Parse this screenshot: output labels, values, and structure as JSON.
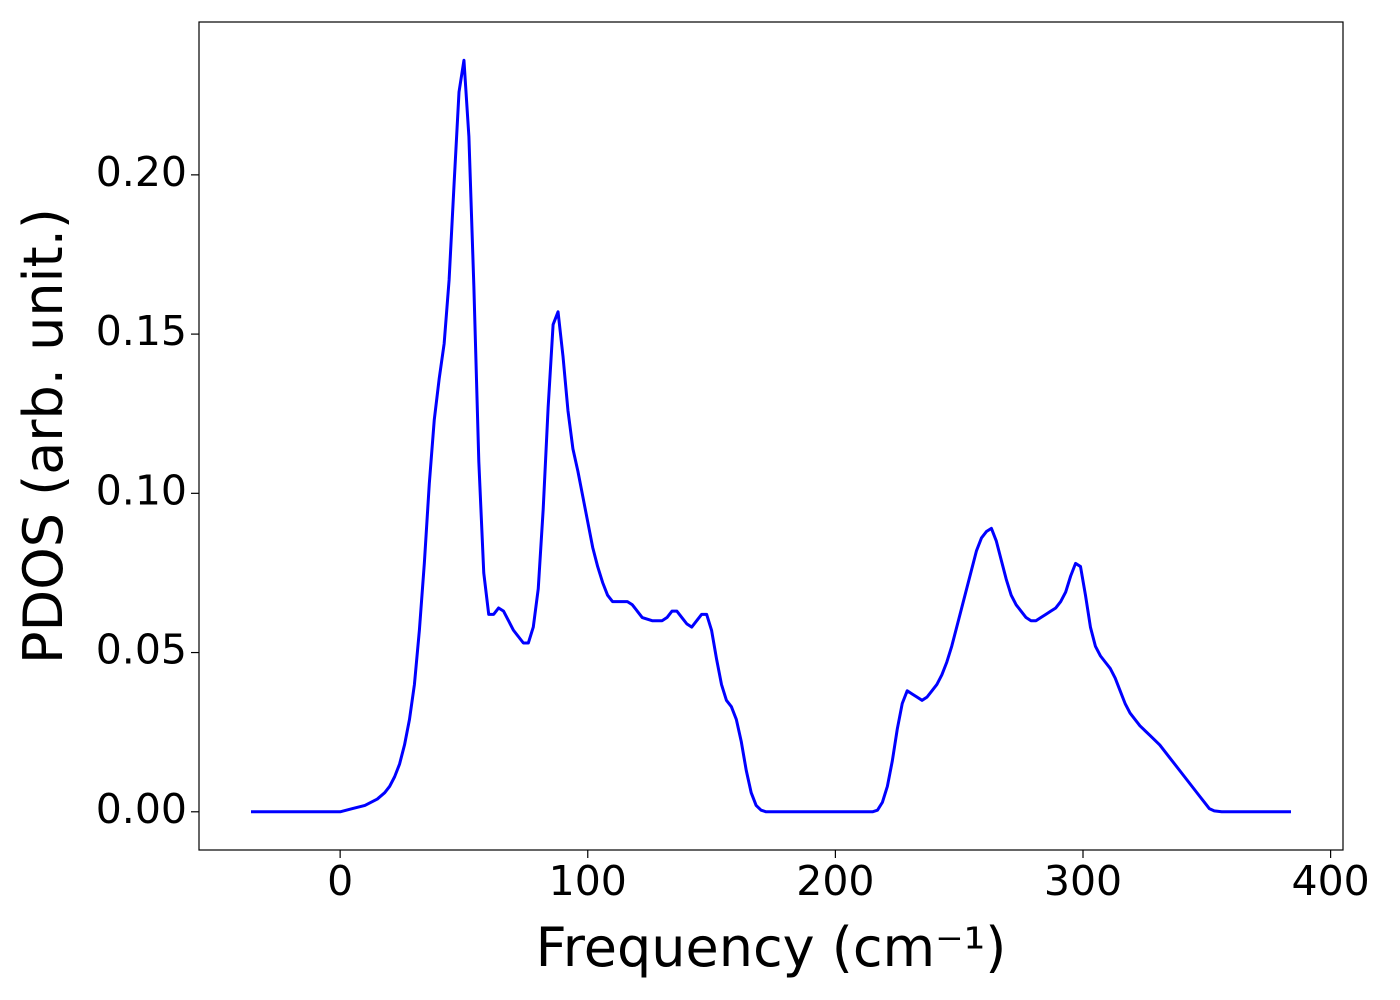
{
  "chart_data": {
    "type": "line",
    "xlabel": "Frequency (cm⁻¹)",
    "ylabel": "PDOS (arb. unit.)",
    "xlim": [
      -57,
      405
    ],
    "ylim": [
      -0.012,
      0.248
    ],
    "xticks": [
      0,
      100,
      200,
      300,
      400
    ],
    "yticks": [
      {
        "value": 0,
        "label": "0.00"
      },
      {
        "value": 0.05,
        "label": "0.05"
      },
      {
        "value": 0.1,
        "label": "0.10"
      },
      {
        "value": 0.15,
        "label": "0.15"
      },
      {
        "value": 0.2,
        "label": "0.20"
      }
    ],
    "x": [
      -36,
      0,
      5,
      10,
      15,
      18,
      20,
      22,
      24,
      26,
      28,
      30,
      32,
      34,
      36,
      38,
      40,
      42,
      44,
      46,
      48,
      50,
      52,
      54,
      56,
      58,
      60,
      62,
      64,
      66,
      68,
      70,
      72,
      74,
      76,
      78,
      80,
      82,
      84,
      86,
      88,
      90,
      92,
      94,
      96,
      98,
      100,
      102,
      104,
      106,
      108,
      110,
      114,
      116,
      118,
      120,
      122,
      126,
      130,
      132,
      134,
      136,
      138,
      140,
      142,
      144,
      146,
      148,
      150,
      152,
      154,
      156,
      158,
      160,
      162,
      164,
      166,
      168,
      170,
      172,
      180,
      200,
      215,
      217,
      219,
      221,
      223,
      225,
      227,
      229,
      231,
      233,
      235,
      237,
      239,
      241,
      243,
      245,
      247,
      249,
      251,
      253,
      255,
      257,
      259,
      261,
      263,
      265,
      267,
      269,
      271,
      273,
      275,
      277,
      279,
      281,
      283,
      285,
      287,
      289,
      291,
      293,
      295,
      297,
      299,
      301,
      303,
      305,
      307,
      309,
      311,
      313,
      315,
      317,
      319,
      321,
      323,
      327,
      331,
      335,
      339,
      343,
      347,
      349,
      351,
      353,
      356,
      384
    ],
    "series": [
      {
        "color": "#0000ff",
        "values": [
          0,
          0,
          0.001,
          0.002,
          0.004,
          0.006,
          0.008,
          0.011,
          0.015,
          0.021,
          0.029,
          0.04,
          0.057,
          0.078,
          0.103,
          0.123,
          0.136,
          0.147,
          0.167,
          0.197,
          0.226,
          0.236,
          0.212,
          0.165,
          0.11,
          0.075,
          0.062,
          0.062,
          0.064,
          0.063,
          0.06,
          0.057,
          0.055,
          0.053,
          0.053,
          0.058,
          0.07,
          0.095,
          0.127,
          0.153,
          0.157,
          0.143,
          0.126,
          0.114,
          0.107,
          0.099,
          0.091,
          0.083,
          0.077,
          0.072,
          0.068,
          0.066,
          0.066,
          0.066,
          0.065,
          0.063,
          0.061,
          0.06,
          0.06,
          0.061,
          0.063,
          0.063,
          0.061,
          0.059,
          0.058,
          0.06,
          0.062,
          0.062,
          0.057,
          0.048,
          0.04,
          0.035,
          0.033,
          0.029,
          0.022,
          0.013,
          0.006,
          0.002,
          0.0005,
          0,
          0,
          0,
          0,
          0.0005,
          0.003,
          0.008,
          0.016,
          0.026,
          0.034,
          0.038,
          0.037,
          0.036,
          0.035,
          0.036,
          0.038,
          0.04,
          0.043,
          0.047,
          0.052,
          0.058,
          0.064,
          0.07,
          0.076,
          0.082,
          0.086,
          0.088,
          0.089,
          0.085,
          0.079,
          0.073,
          0.068,
          0.065,
          0.063,
          0.061,
          0.06,
          0.06,
          0.061,
          0.062,
          0.063,
          0.064,
          0.066,
          0.069,
          0.074,
          0.078,
          0.077,
          0.068,
          0.058,
          0.052,
          0.049,
          0.047,
          0.045,
          0.042,
          0.038,
          0.034,
          0.031,
          0.029,
          0.027,
          0.024,
          0.021,
          0.017,
          0.013,
          0.009,
          0.005,
          0.003,
          0.001,
          0.0003,
          0,
          0
        ]
      }
    ]
  }
}
